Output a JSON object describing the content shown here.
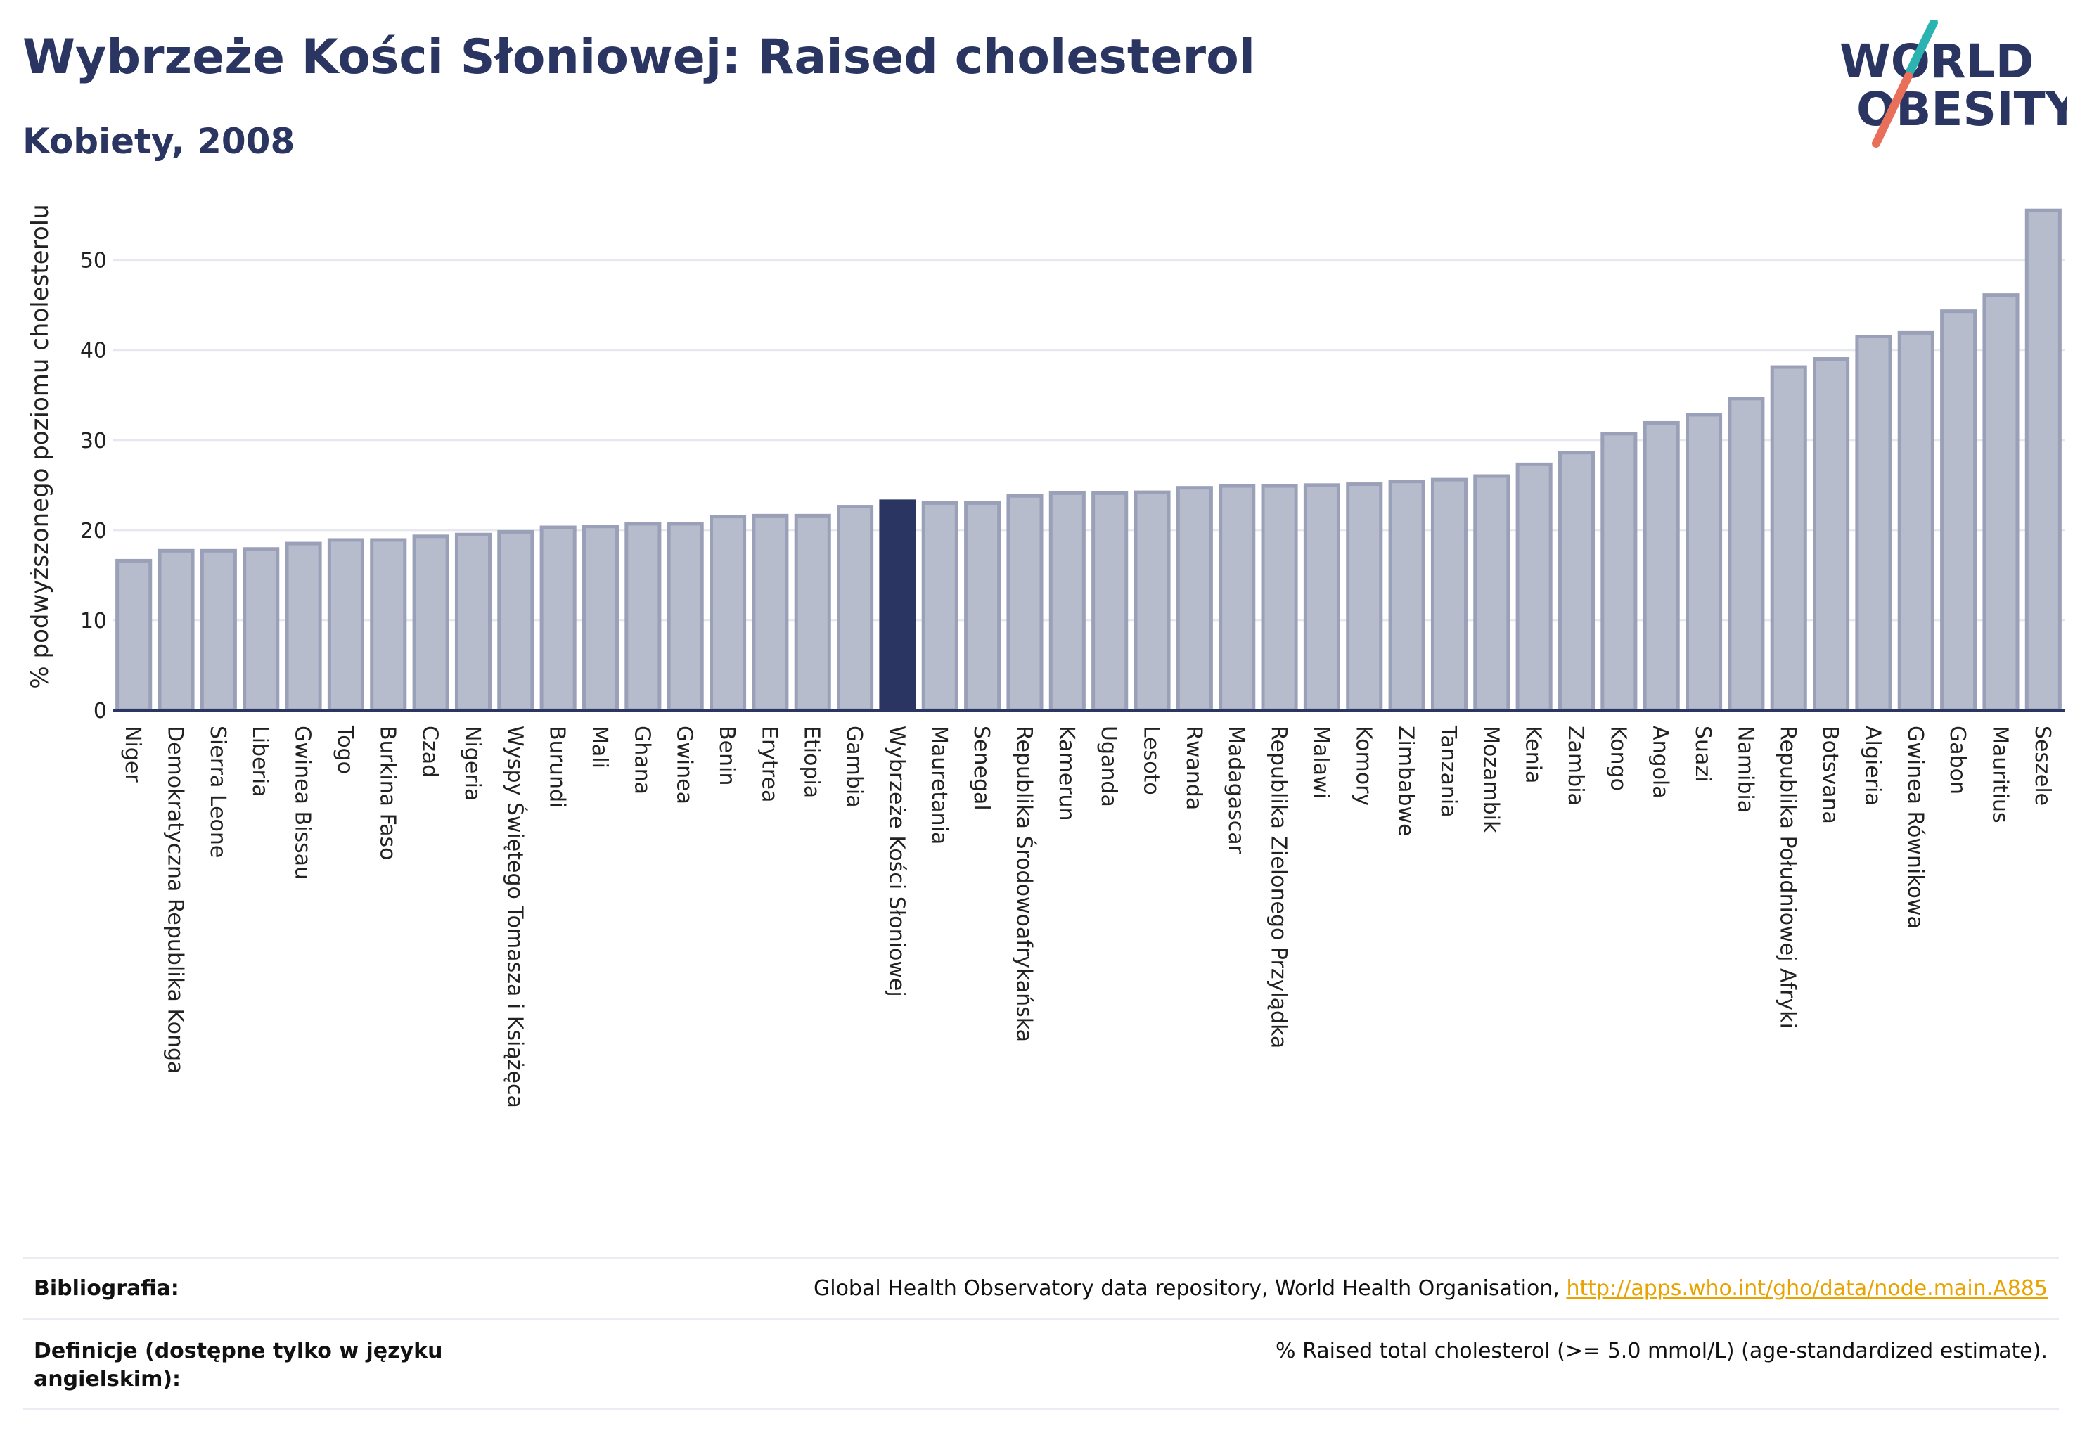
{
  "header": {
    "title": "Wybrzeże Kości Słoniowej: Raised cholesterol",
    "subtitle": "Kobiety, 2008"
  },
  "logo": {
    "line1": "WORLD",
    "line2": "OBESITY",
    "colors": {
      "text": "#2a3561",
      "slash_top": "#2bb3b1",
      "slash_bottom": "#e8705a"
    }
  },
  "colors": {
    "bar": "#b7bccd",
    "bar_stroke": "#9aa0b8",
    "highlight": "#2a3561",
    "grid": "#e6e8ee",
    "axis": "#2a3561"
  },
  "chart_data": {
    "type": "bar",
    "title": "Wybrzeże Kości Słoniowej: Raised cholesterol",
    "subtitle": "Kobiety, 2008",
    "xlabel": "",
    "ylabel": "% podwyższonego poziomu cholesterolu",
    "ylim": [
      0,
      57
    ],
    "yticks": [
      0,
      10,
      20,
      30,
      40,
      50
    ],
    "grid": true,
    "highlight": "Wybrzeże Kości Słoniowej",
    "categories": [
      "Niger",
      "Demokratyczna Republika Konga",
      "Sierra Leone",
      "Liberia",
      "Gwinea Bissau",
      "Togo",
      "Burkina Faso",
      "Czad",
      "Nigeria",
      "Wyspy Świętego Tomasza i Książęca",
      "Burundi",
      "Mali",
      "Ghana",
      "Gwinea",
      "Benin",
      "Erytrea",
      "Etiopia",
      "Gambia",
      "Wybrzeże Kości Słoniowej",
      "Mauretania",
      "Senegal",
      "Republika Środowoafrykańska",
      "Kamerun",
      "Uganda",
      "Lesoto",
      "Rwanda",
      "Madagascar",
      "Republika Zielonego Przylądka",
      "Malawi",
      "Komory",
      "Zimbabwe",
      "Tanzania",
      "Mozambik",
      "Kenia",
      "Zambia",
      "Kongo",
      "Angola",
      "Suazi",
      "Namibia",
      "Republika Południowej Afryki",
      "Botsvana",
      "Algieria",
      "Gwinea Równikowa",
      "Gabon",
      "Mauritius",
      "Seszele"
    ],
    "values": [
      16.6,
      17.7,
      17.7,
      17.9,
      18.5,
      18.9,
      18.9,
      19.3,
      19.5,
      19.8,
      20.3,
      20.4,
      20.7,
      20.7,
      21.5,
      21.6,
      21.6,
      22.6,
      23.2,
      23.0,
      23.0,
      23.8,
      24.1,
      24.1,
      24.2,
      24.7,
      24.9,
      24.9,
      25.0,
      25.1,
      25.4,
      25.6,
      26.0,
      27.3,
      28.6,
      30.7,
      31.9,
      32.8,
      34.6,
      38.1,
      39.0,
      41.5,
      41.9,
      44.3,
      46.1,
      55.5
    ]
  },
  "footer": {
    "bibliography_label": "Bibliografia:",
    "bibliography_text": "Global Health Observatory data repository, World Health Organisation,",
    "bibliography_link": "http://apps.who.int/gho/data/node.main.A885",
    "definitions_label": "Definicje (dostępne tylko w języku angielskim):",
    "definitions_text": "% Raised total cholesterol (>= 5.0 mmol/L) (age-standardized estimate)."
  }
}
